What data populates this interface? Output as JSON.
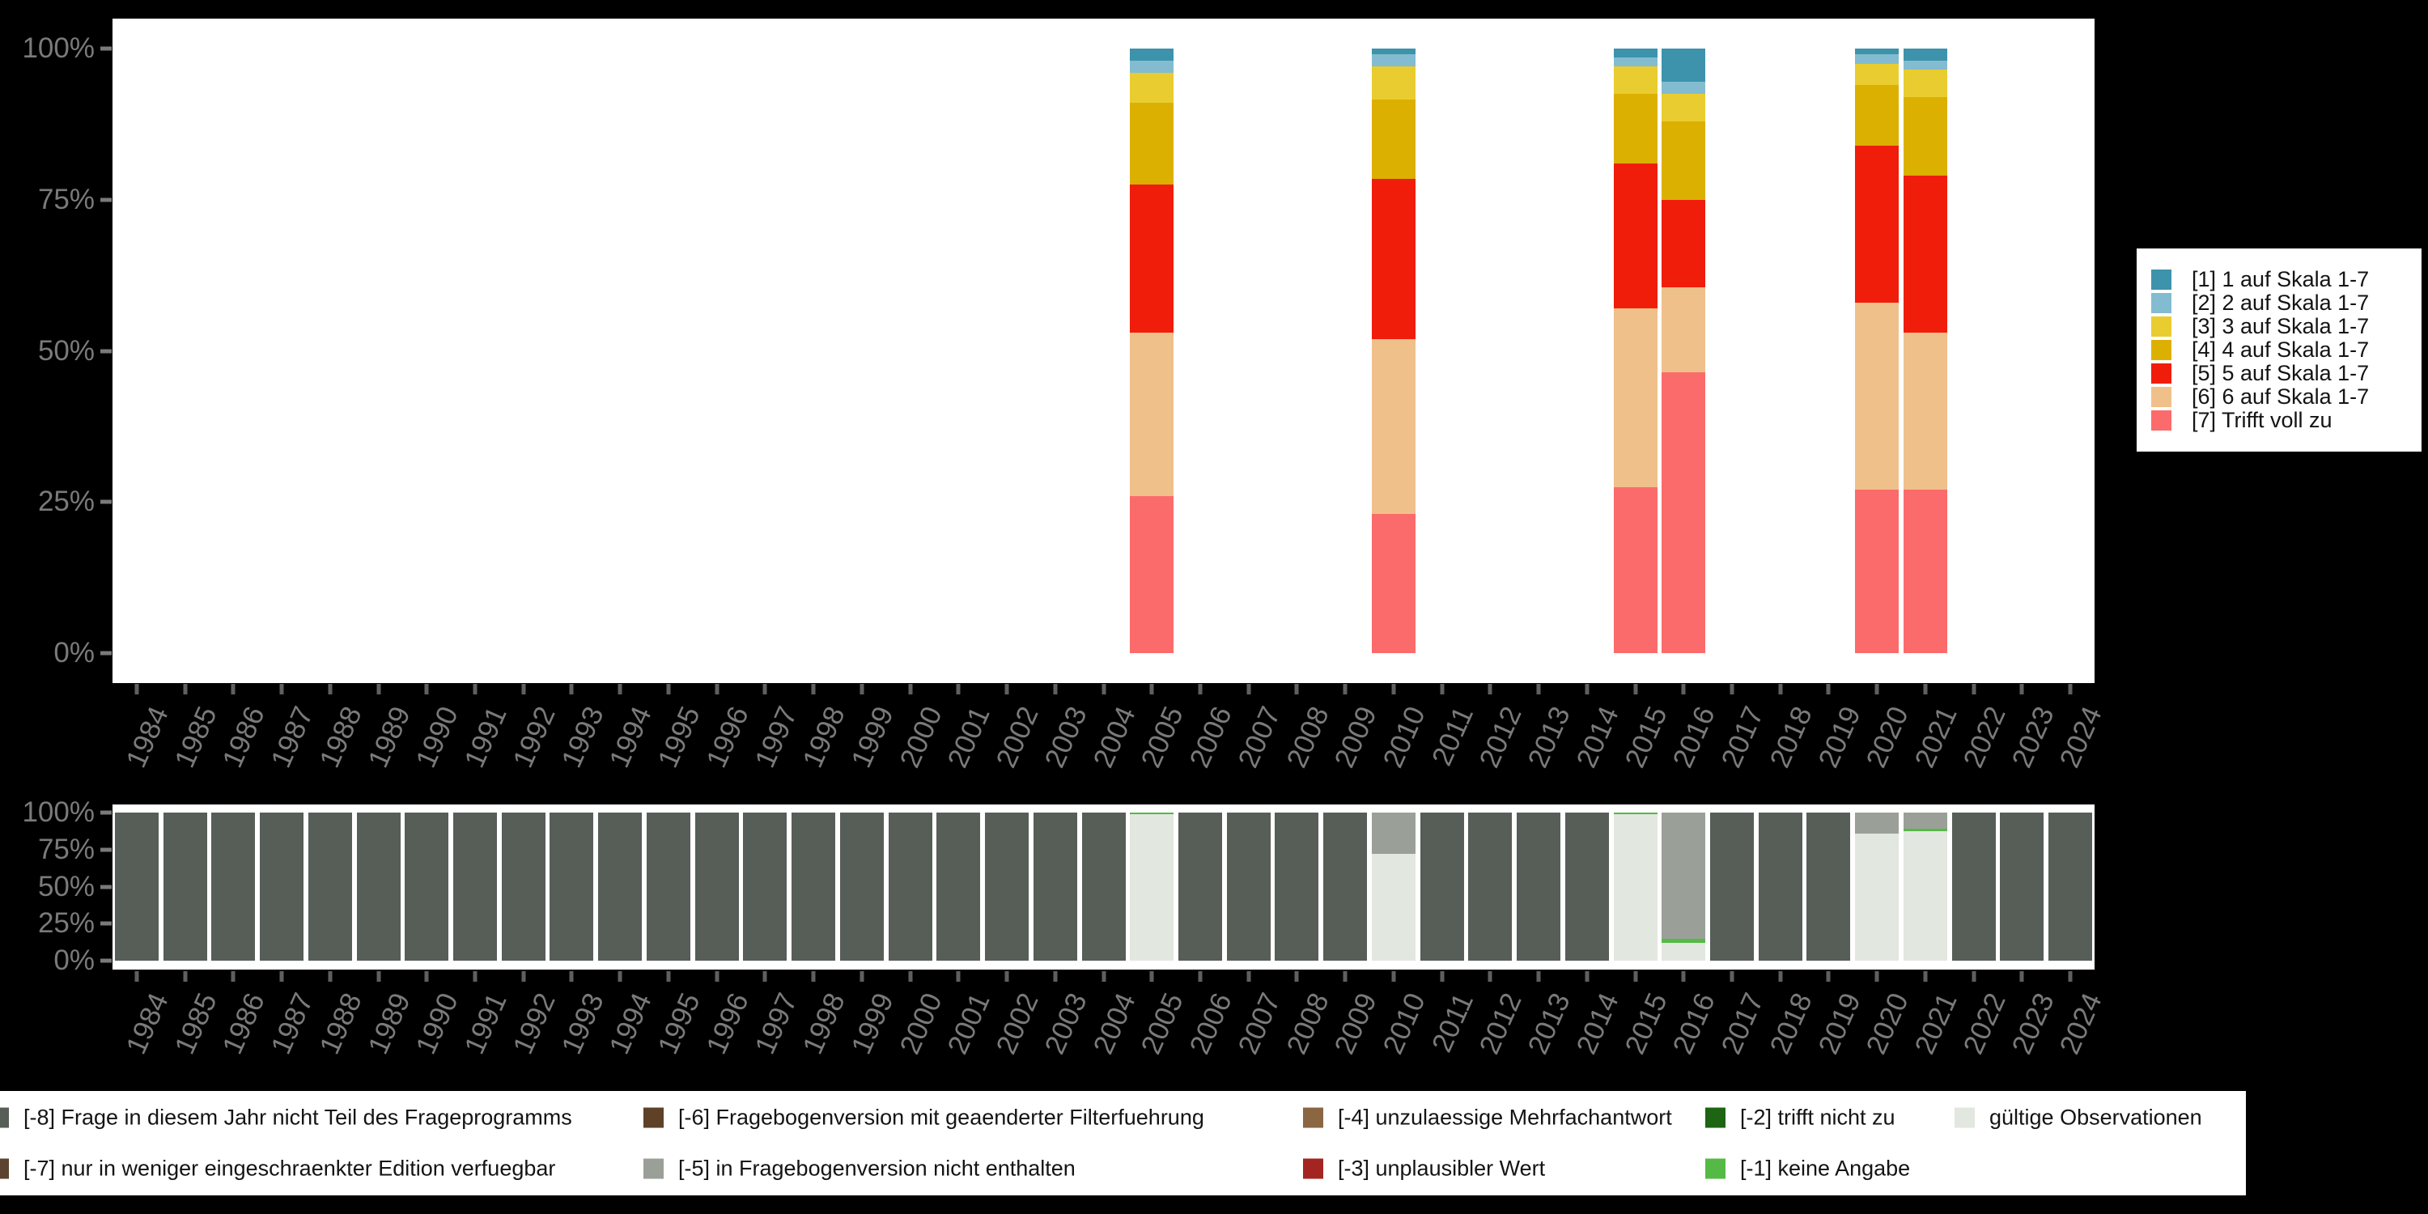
{
  "colors": {
    "background": "#000000",
    "plot_background": "#ffffff",
    "axis_text": "#7a7a7a"
  },
  "chart_data": [
    {
      "type": "bar",
      "stacked": true,
      "unit": "percent",
      "legend_position": "right",
      "grid": false,
      "ylim": [
        0,
        100
      ],
      "y_ticks": [
        "100%",
        "75%",
        "50%",
        "25%",
        "0%"
      ],
      "x_categories": [
        "1984",
        "1985",
        "1986",
        "1987",
        "1988",
        "1989",
        "1990",
        "1991",
        "1992",
        "1993",
        "1994",
        "1995",
        "1996",
        "1997",
        "1998",
        "1999",
        "2000",
        "2001",
        "2002",
        "2003",
        "2004",
        "2005",
        "2006",
        "2007",
        "2008",
        "2009",
        "2010",
        "2011",
        "2012",
        "2013",
        "2014",
        "2015",
        "2016",
        "2017",
        "2018",
        "2019",
        "2020",
        "2021",
        "2022",
        "2023",
        "2024"
      ],
      "bar_years": [
        "2005",
        "2010",
        "2015",
        "2016",
        "2020",
        "2021"
      ],
      "series": [
        {
          "name": "[1] 1 auf Skala 1-7",
          "color": "#3d93ab",
          "values": [
            2,
            1,
            1.5,
            5.5,
            1,
            2
          ]
        },
        {
          "name": "[2] 2 auf Skala 1-7",
          "color": "#83bcd0",
          "values": [
            2,
            2,
            1.5,
            2,
            1.5,
            1.5
          ]
        },
        {
          "name": "[3] 3 auf Skala 1-7",
          "color": "#e9cc30",
          "values": [
            5,
            5.5,
            4.5,
            4.5,
            3.5,
            4.5
          ]
        },
        {
          "name": "[4] 4 auf Skala 1-7",
          "color": "#dcb000",
          "values": [
            13.5,
            13,
            11.5,
            13,
            10,
            13
          ]
        },
        {
          "name": "[5] 5 auf Skala 1-7",
          "color": "#f01d0b",
          "values": [
            24.5,
            26.5,
            24,
            14.5,
            26,
            26
          ]
        },
        {
          "name": "[6] 6 auf Skala 1-7",
          "color": "#f0c08a",
          "values": [
            27,
            29,
            29.5,
            14,
            31,
            26
          ]
        },
        {
          "name": "[7] Trifft voll zu",
          "color": "#fc6b6b",
          "values": [
            26,
            23,
            27.5,
            46.5,
            27,
            27
          ]
        }
      ]
    },
    {
      "type": "bar",
      "stacked": true,
      "unit": "percent",
      "legend_position": "bottom",
      "grid": false,
      "ylim": [
        0,
        100
      ],
      "y_ticks": [
        "100%",
        "75%",
        "50%",
        "25%",
        "0%"
      ],
      "x_categories": [
        "1984",
        "1985",
        "1986",
        "1987",
        "1988",
        "1989",
        "1990",
        "1991",
        "1992",
        "1993",
        "1994",
        "1995",
        "1996",
        "1997",
        "1998",
        "1999",
        "2000",
        "2001",
        "2002",
        "2003",
        "2004",
        "2005",
        "2006",
        "2007",
        "2008",
        "2009",
        "2010",
        "2011",
        "2012",
        "2013",
        "2014",
        "2015",
        "2016",
        "2017",
        "2018",
        "2019",
        "2020",
        "2021",
        "2022",
        "2023",
        "2024"
      ],
      "series": [
        {
          "key": "-8",
          "name": "[-8] Frage in diesem Jahr nicht Teil des Frageprogramms",
          "color": "#565e57"
        },
        {
          "key": "-7",
          "name": "[-7] nur in weniger eingeschraenkter Edition verfuegbar",
          "color": "#5b4330"
        },
        {
          "key": "-6",
          "name": "[-6] Fragebogenversion mit geaenderter Filterfuehrung",
          "color": "#5e4127"
        },
        {
          "key": "-5",
          "name": "[-5] in Fragebogenversion nicht enthalten",
          "color": "#9aa098"
        },
        {
          "key": "-4",
          "name": "[-4] unzulaessige Mehrfachantwort",
          "color": "#8a6642"
        },
        {
          "key": "-3",
          "name": "[-3] unplausibler Wert",
          "color": "#a32420"
        },
        {
          "key": "-2",
          "name": "[-2] trifft nicht zu",
          "color": "#1d6413"
        },
        {
          "key": "-1",
          "name": "[-1] keine Angabe",
          "color": "#54ba45"
        },
        {
          "key": "valid",
          "name": "gültige Observationen",
          "color": "#e2e7e0"
        }
      ],
      "default_stack": {
        "-8": 100
      },
      "bars_by_year": {
        "2005": {
          "-1": 1,
          "valid": 99
        },
        "2010": {
          "-5": 28,
          "valid": 72
        },
        "2015": {
          "-1": 1,
          "valid": 99
        },
        "2016": {
          "-5": 85,
          "-1": 3,
          "valid": 12
        },
        "2020": {
          "-5": 14,
          "valid": 86
        },
        "2021": {
          "-5": 11,
          "-1": 1.5,
          "valid": 87.5
        }
      },
      "legend_rows": [
        [
          0,
          2,
          4,
          6,
          8
        ],
        [
          1,
          3,
          5,
          7
        ]
      ]
    }
  ]
}
